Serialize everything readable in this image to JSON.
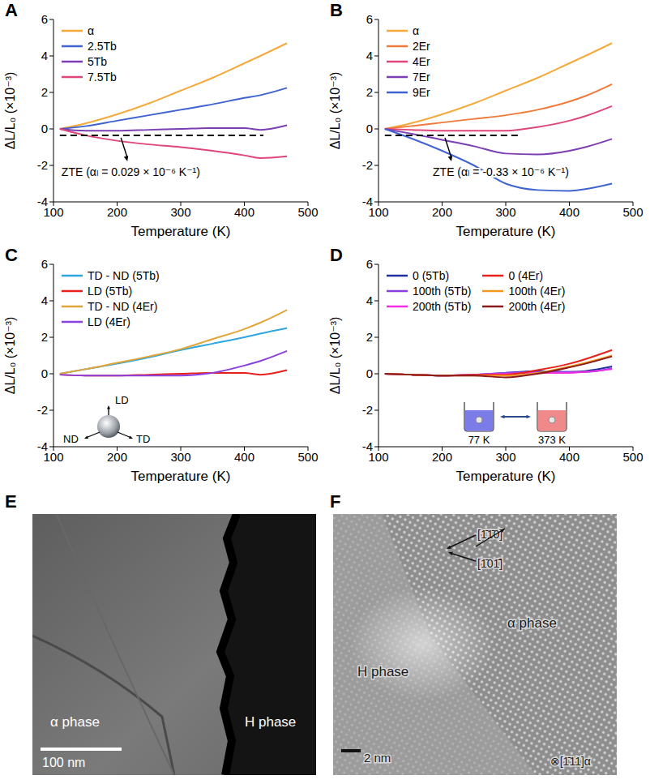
{
  "chart_data": [
    {
      "panel": "A",
      "type": "line",
      "x_label": "Temperature (K)",
      "y_label": "ΔL/L₀ (×10⁻³)",
      "xlim": [
        100,
        500
      ],
      "xticks": [
        100,
        200,
        300,
        400,
        500
      ],
      "ylim": [
        -4,
        6
      ],
      "yticks": [
        -4,
        -2,
        0,
        2,
        4,
        6
      ],
      "legend": "upper left",
      "x": [
        110,
        150,
        200,
        250,
        300,
        350,
        400,
        425,
        467
      ],
      "series": [
        {
          "name": "α",
          "color": "#f5a93b",
          "values": [
            0,
            0.3,
            0.8,
            1.4,
            2.1,
            2.8,
            3.6,
            4.0,
            4.7
          ]
        },
        {
          "name": "2.5Tb",
          "color": "#3f63d1",
          "values": [
            0,
            0.15,
            0.45,
            0.75,
            1.05,
            1.35,
            1.7,
            1.85,
            2.25
          ]
        },
        {
          "name": "5Tb",
          "color": "#7b3fb3",
          "values": [
            0,
            -0.1,
            -0.1,
            -0.05,
            0,
            0.05,
            0.05,
            -0.05,
            0.2
          ]
        },
        {
          "name": "7.5Tb",
          "color": "#e0457b",
          "values": [
            0,
            -0.35,
            -0.65,
            -0.85,
            -1.0,
            -1.2,
            -1.45,
            -1.6,
            -1.5
          ]
        }
      ],
      "annotations": [
        {
          "text": "ZTE (αₗ = 0.029 × 10⁻⁶ K⁻¹)",
          "x": [
            110,
            430
          ],
          "y": -0.35,
          "line_style": "dashed"
        }
      ]
    },
    {
      "panel": "B",
      "type": "line",
      "x_label": "Temperature (K)",
      "y_label": "ΔL/L₀ (×10⁻³)",
      "xlim": [
        100,
        500
      ],
      "xticks": [
        100,
        200,
        300,
        400,
        500
      ],
      "ylim": [
        -4,
        6
      ],
      "yticks": [
        -4,
        -2,
        0,
        2,
        4,
        6
      ],
      "legend": "upper left",
      "x": [
        110,
        150,
        200,
        250,
        300,
        350,
        400,
        425,
        467
      ],
      "series": [
        {
          "name": "α",
          "color": "#f5a93b",
          "values": [
            0,
            0.3,
            0.8,
            1.4,
            2.1,
            2.8,
            3.6,
            4.0,
            4.7
          ]
        },
        {
          "name": "2Er",
          "color": "#f07a3a",
          "values": [
            0,
            0.15,
            0.35,
            0.55,
            0.75,
            1.05,
            1.5,
            1.8,
            2.45
          ]
        },
        {
          "name": "4Er",
          "color": "#e0457b",
          "values": [
            0,
            -0.05,
            -0.1,
            -0.1,
            -0.1,
            0.1,
            0.45,
            0.7,
            1.25
          ]
        },
        {
          "name": "7Er",
          "color": "#7b3fb3",
          "values": [
            0,
            -0.25,
            -0.6,
            -0.95,
            -1.35,
            -1.4,
            -1.2,
            -1.0,
            -0.55
          ]
        },
        {
          "name": "9Er",
          "color": "#3f63d1",
          "values": [
            0,
            -0.5,
            -1.2,
            -2.0,
            -3.0,
            -3.35,
            -3.4,
            -3.3,
            -3.0
          ]
        }
      ],
      "annotations": [
        {
          "text": "ZTE (αₗ = -0.33 × 10⁻⁶ K⁻¹)",
          "x": [
            110,
            320
          ],
          "y": -0.35,
          "line_style": "dashed"
        }
      ]
    },
    {
      "panel": "C",
      "type": "line",
      "x_label": "Temperature (K)",
      "y_label": "ΔL/L₀ (×10⁻³)",
      "xlim": [
        100,
        500
      ],
      "xticks": [
        100,
        200,
        300,
        400,
        500
      ],
      "ylim": [
        -4,
        6
      ],
      "yticks": [
        -4,
        -2,
        0,
        2,
        4,
        6
      ],
      "legend": "upper left",
      "x": [
        110,
        150,
        200,
        250,
        300,
        350,
        400,
        425,
        467
      ],
      "series": [
        {
          "name": "TD - ND (5Tb)",
          "color": "#2ea7e0",
          "values": [
            0,
            0.25,
            0.55,
            0.9,
            1.3,
            1.65,
            2.0,
            2.2,
            2.5
          ]
        },
        {
          "name": "LD (5Tb)",
          "color": "#e8201c",
          "values": [
            -0.05,
            -0.1,
            -0.1,
            -0.05,
            0,
            0.05,
            0.05,
            -0.05,
            0.2
          ]
        },
        {
          "name": "TD - ND (4Er)",
          "color": "#e0a63a",
          "values": [
            0,
            0.25,
            0.6,
            0.95,
            1.35,
            1.9,
            2.45,
            2.8,
            3.5
          ]
        },
        {
          "name": "LD (4Er)",
          "color": "#8a3fe0",
          "values": [
            -0.05,
            -0.1,
            -0.1,
            -0.1,
            -0.1,
            0.05,
            0.45,
            0.7,
            1.25
          ]
        }
      ],
      "inset": {
        "labels": [
          "LD",
          "ND",
          "TD"
        ]
      }
    },
    {
      "panel": "D",
      "type": "line",
      "x_label": "Temperature (K)",
      "y_label": "ΔL/L₀ (×10⁻³)",
      "xlim": [
        100,
        500
      ],
      "xticks": [
        100,
        200,
        300,
        400,
        500
      ],
      "ylim": [
        -4,
        6
      ],
      "yticks": [
        -4,
        -2,
        0,
        2,
        4,
        6
      ],
      "legend": "upper left",
      "x": [
        110,
        150,
        200,
        250,
        300,
        350,
        400,
        425,
        467
      ],
      "series": [
        {
          "name": "0 (5Tb)",
          "color": "#1f2fa0",
          "values": [
            0,
            -0.05,
            -0.1,
            -0.05,
            0.05,
            0.15,
            0.1,
            0.15,
            0.4
          ]
        },
        {
          "name": "100th (5Tb)",
          "color": "#8a3fe0",
          "values": [
            0,
            -0.05,
            -0.1,
            -0.05,
            0.05,
            0.1,
            0.1,
            0.1,
            0.3
          ]
        },
        {
          "name": "200th (5Tb)",
          "color": "#f030e0",
          "values": [
            0,
            -0.05,
            -0.1,
            -0.05,
            0,
            0.05,
            0.05,
            0.1,
            0.25
          ]
        },
        {
          "name": "0 (4Er)",
          "color": "#e8201c",
          "values": [
            0,
            -0.05,
            -0.1,
            -0.05,
            -0.05,
            0.2,
            0.55,
            0.8,
            1.3
          ]
        },
        {
          "name": "100th (4Er)",
          "color": "#f39a1e",
          "values": [
            0,
            -0.05,
            -0.1,
            -0.1,
            -0.1,
            0.05,
            0.4,
            0.6,
            1.0
          ]
        },
        {
          "name": "200th (4Er)",
          "color": "#8b1a1a",
          "values": [
            0,
            -0.05,
            -0.1,
            -0.1,
            -0.2,
            0,
            0.35,
            0.55,
            0.95
          ]
        }
      ],
      "inset": {
        "labels": [
          "77 K",
          "373 K"
        ]
      }
    }
  ],
  "images": [
    {
      "panel": "E",
      "labels": [
        "α phase",
        "H phase"
      ],
      "scale_bar": "100 nm"
    },
    {
      "panel": "F",
      "labels": [
        "H phase",
        "α phase"
      ],
      "directions": [
        "[1̄1̄0]",
        "[1̄01̄]"
      ],
      "zone_axis": "⊗[1̄11]α",
      "scale_bar": "2 nm"
    }
  ]
}
